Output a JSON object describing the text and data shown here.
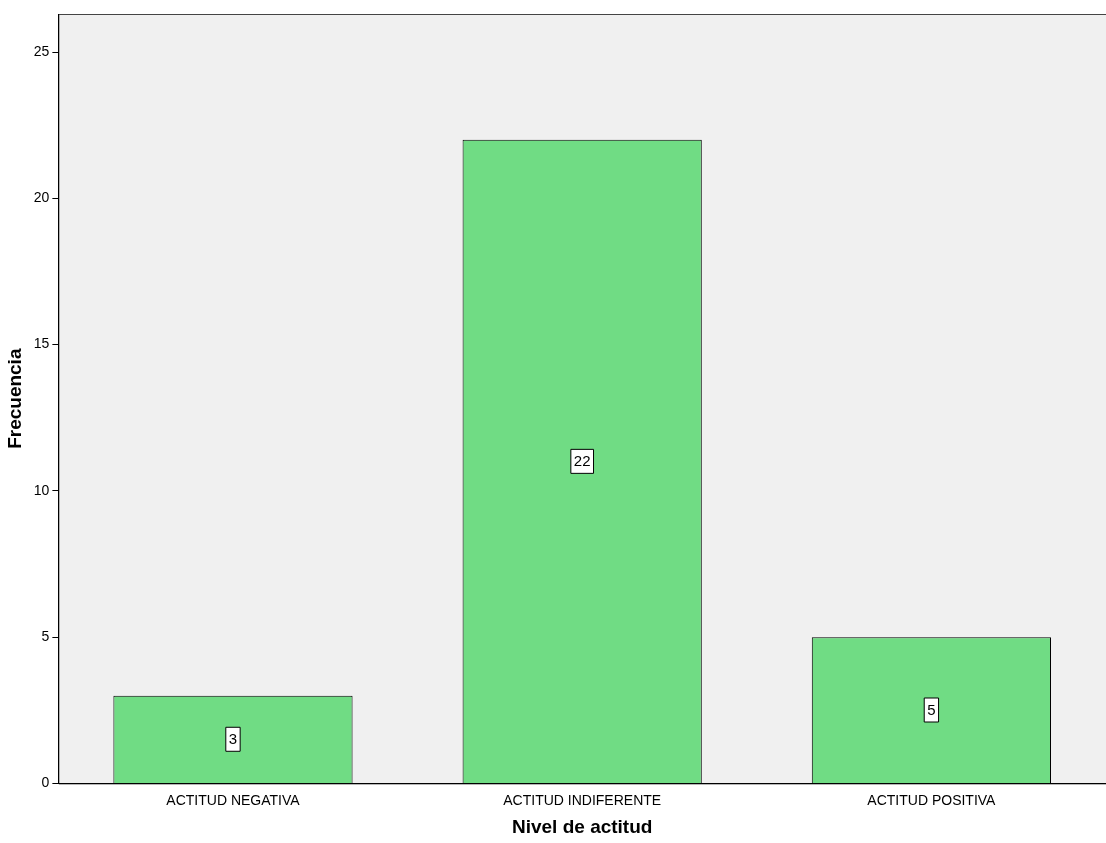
{
  "chart_data": {
    "type": "bar",
    "xlabel": "Nivel de actitud",
    "ylabel": "Frecuencia",
    "categories": [
      "ACTITUD NEGATIVA",
      "ACTITUD INDIFERENTE",
      "ACTITUD POSITIVA"
    ],
    "values": [
      3,
      22,
      5
    ],
    "color": "#70dc84",
    "ylim": [
      0,
      26.3
    ],
    "yticks": [
      0,
      5,
      10,
      15,
      20,
      25
    ],
    "grid": false,
    "legend": false,
    "data_labels": true
  }
}
